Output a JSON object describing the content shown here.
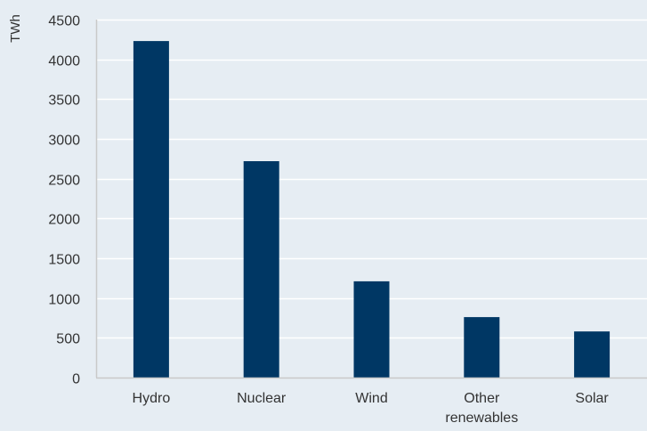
{
  "chart_data": {
    "type": "bar",
    "ylabel": "TWh",
    "xlabel": "",
    "title": "",
    "categories": [
      "Hydro",
      "Nuclear",
      "Wind",
      "Other renewables",
      "Solar"
    ],
    "category_label_lines": [
      [
        "Hydro"
      ],
      [
        "Nuclear"
      ],
      [
        "Wind"
      ],
      [
        "Other",
        "renewables"
      ],
      [
        "Solar"
      ]
    ],
    "values": [
      4230,
      2720,
      1210,
      760,
      580
    ],
    "ylim": [
      0,
      4500
    ],
    "yticks": [
      0,
      500,
      1000,
      1500,
      2000,
      2500,
      3000,
      3500,
      4000,
      4500
    ],
    "grid": true,
    "legend": "none",
    "colors": {
      "bar": "#003764",
      "grid": "#ffffff",
      "axis": "#c9c9c9",
      "background": "#e6edf3",
      "text": "#333333"
    }
  }
}
